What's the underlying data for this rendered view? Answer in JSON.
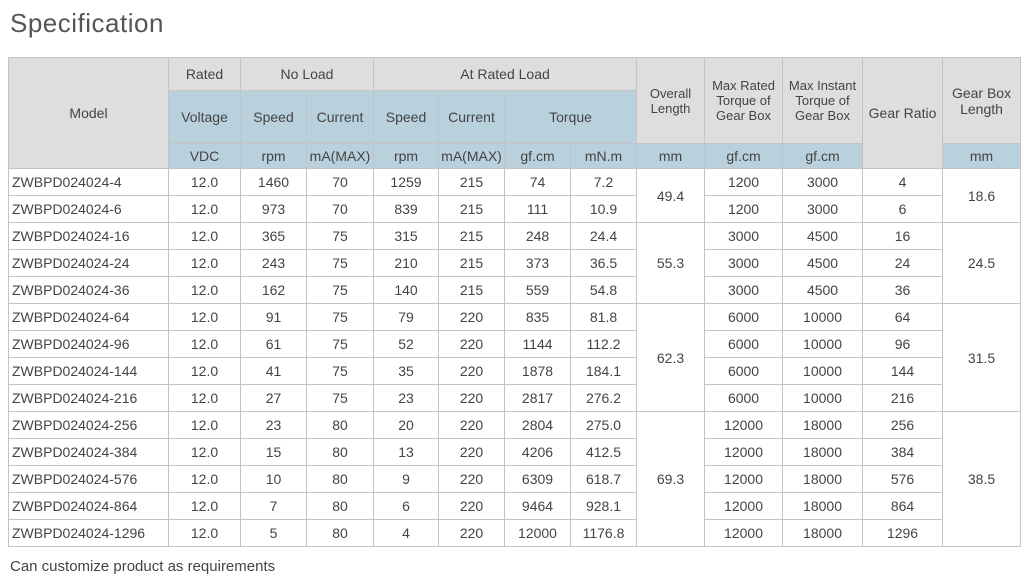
{
  "title": "Specification",
  "header": {
    "model": "Model",
    "rated": "Rated",
    "no_load": "No Load",
    "at_rated_load": "At Rated Load",
    "voltage": "Voltage",
    "speed": "Speed",
    "current": "Current",
    "torque": "Torque",
    "overall_length": "Overall Length",
    "max_rated_torque": "Max Rated Torque of Gear Box",
    "max_instant_torque": "Max Instant Torque of Gear Box",
    "gear_ratio": "Gear Ratio",
    "gear_box_length": "Gear Box Length",
    "units": {
      "vdc": "VDC",
      "rpm": "rpm",
      "ma": "mA(MAX)",
      "gfcm": "gf.cm",
      "mnm": "mN.m",
      "mm": "mm"
    }
  },
  "rows": [
    [
      "ZWBPD024024-4",
      "12.0",
      "1460",
      "70",
      "1259",
      "215",
      "74",
      "7.2",
      "1200",
      "3000",
      "4"
    ],
    [
      "ZWBPD024024-6",
      "12.0",
      "973",
      "70",
      "839",
      "215",
      "111",
      "10.9",
      "1200",
      "3000",
      "6"
    ],
    [
      "ZWBPD024024-16",
      "12.0",
      "365",
      "75",
      "315",
      "215",
      "248",
      "24.4",
      "3000",
      "4500",
      "16"
    ],
    [
      "ZWBPD024024-24",
      "12.0",
      "243",
      "75",
      "210",
      "215",
      "373",
      "36.5",
      "3000",
      "4500",
      "24"
    ],
    [
      "ZWBPD024024-36",
      "12.0",
      "162",
      "75",
      "140",
      "215",
      "559",
      "54.8",
      "3000",
      "4500",
      "36"
    ],
    [
      "ZWBPD024024-64",
      "12.0",
      "91",
      "75",
      "79",
      "220",
      "835",
      "81.8",
      "6000",
      "10000",
      "64"
    ],
    [
      "ZWBPD024024-96",
      "12.0",
      "61",
      "75",
      "52",
      "220",
      "1144",
      "112.2",
      "6000",
      "10000",
      "96"
    ],
    [
      "ZWBPD024024-144",
      "12.0",
      "41",
      "75",
      "35",
      "220",
      "1878",
      "184.1",
      "6000",
      "10000",
      "144"
    ],
    [
      "ZWBPD024024-216",
      "12.0",
      "27",
      "75",
      "23",
      "220",
      "2817",
      "276.2",
      "6000",
      "10000",
      "216"
    ],
    [
      "ZWBPD024024-256",
      "12.0",
      "23",
      "80",
      "20",
      "220",
      "2804",
      "275.0",
      "12000",
      "18000",
      "256"
    ],
    [
      "ZWBPD024024-384",
      "12.0",
      "15",
      "80",
      "13",
      "220",
      "4206",
      "412.5",
      "12000",
      "18000",
      "384"
    ],
    [
      "ZWBPD024024-576",
      "12.0",
      "10",
      "80",
      "9",
      "220",
      "6309",
      "618.7",
      "12000",
      "18000",
      "576"
    ],
    [
      "ZWBPD024024-864",
      "12.0",
      "7",
      "80",
      "6",
      "220",
      "9464",
      "928.1",
      "12000",
      "18000",
      "864"
    ],
    [
      "ZWBPD024024-1296",
      "12.0",
      "5",
      "80",
      "4",
      "220",
      "12000",
      "1176.8",
      "12000",
      "18000",
      "1296"
    ]
  ],
  "groups": [
    {
      "rows": 2,
      "overall_length": "49.4",
      "gear_box_length": "18.6"
    },
    {
      "rows": 3,
      "overall_length": "55.3",
      "gear_box_length": "24.5"
    },
    {
      "rows": 4,
      "overall_length": "62.3",
      "gear_box_length": "31.5"
    },
    {
      "rows": 5,
      "overall_length": "69.3",
      "gear_box_length": "38.5"
    }
  ],
  "note": "Can customize product as requirements",
  "colors": {
    "header_grey": "#dedede",
    "header_blue": "#b9d0dd",
    "border": "#c4c4c4"
  }
}
